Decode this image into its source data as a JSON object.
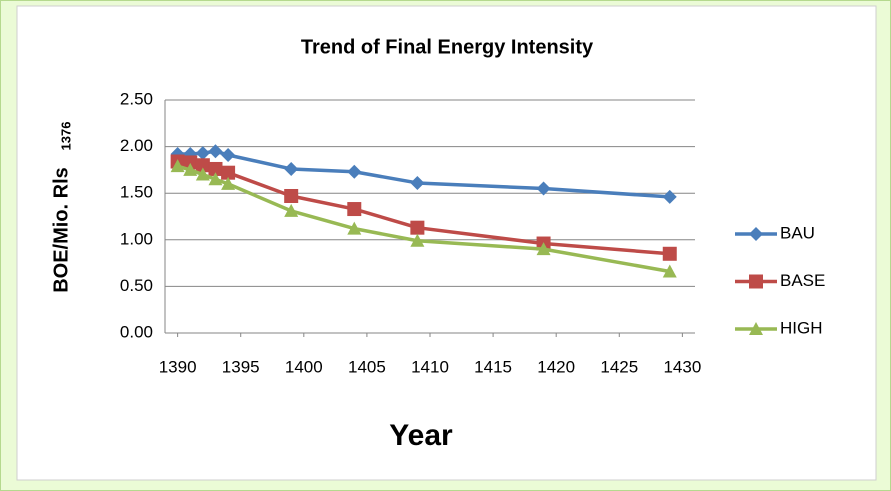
{
  "chart_data": {
    "type": "line",
    "title": "Trend of Final Energy Intensity",
    "x_label": "Year",
    "y_label": "BOE/Mio. Rls",
    "y_label_sub": "1376",
    "x": [
      1390,
      1391,
      1392,
      1393,
      1394,
      1399,
      1404,
      1409,
      1419,
      1429
    ],
    "series": [
      {
        "name": "BAU",
        "color": "#4a7ebb",
        "marker": "diamond",
        "values": [
          1.92,
          1.92,
          1.93,
          1.95,
          1.91,
          1.76,
          1.73,
          1.61,
          1.55,
          1.46
        ]
      },
      {
        "name": "BASE",
        "color": "#be4b48",
        "marker": "square",
        "values": [
          1.84,
          1.83,
          1.8,
          1.76,
          1.72,
          1.47,
          1.33,
          1.13,
          0.96,
          0.85
        ]
      },
      {
        "name": "HIGH",
        "color": "#98b954",
        "marker": "triangle",
        "values": [
          1.79,
          1.75,
          1.7,
          1.65,
          1.6,
          1.31,
          1.12,
          0.99,
          0.9,
          0.66
        ]
      }
    ],
    "xlim": [
      1389,
      1431
    ],
    "xticks": [
      1390,
      1395,
      1400,
      1405,
      1410,
      1415,
      1420,
      1425,
      1430
    ],
    "ylim": [
      0,
      2.5
    ],
    "yticks": [
      {
        "value": 0,
        "label": "0.00"
      },
      {
        "value": 0.5,
        "label": "0.50"
      },
      {
        "value": 1,
        "label": "1.00"
      },
      {
        "value": 1.5,
        "label": "1.50"
      },
      {
        "value": 2,
        "label": "2.00"
      },
      {
        "value": 2.5,
        "label": "2.50"
      }
    ],
    "grid": true,
    "legend": "right"
  }
}
